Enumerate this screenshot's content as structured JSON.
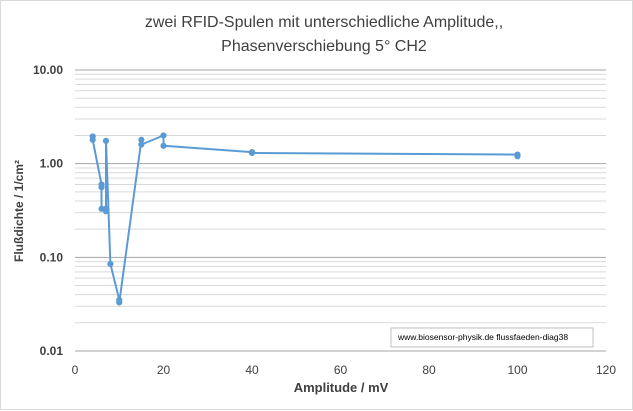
{
  "chart_data": {
    "type": "scatter",
    "title_lines": [
      "zwei RFID-Spulen mit unterschiedliche Amplitude,,",
      "Phasenverschiebung 5° CH2"
    ],
    "xlabel": "Amplitude / mV",
    "ylabel": "Flußdichte / 1/cm²",
    "xlim": [
      0,
      120
    ],
    "ylim": [
      0.01,
      10
    ],
    "yscale": "log",
    "xticks": [
      0,
      20,
      40,
      60,
      80,
      100,
      120
    ],
    "xtick_labels": [
      "0",
      "20",
      "40",
      "60",
      "80",
      "100",
      "120"
    ],
    "yticks": [
      0.01,
      0.1,
      1,
      10
    ],
    "ytick_labels": [
      "0.01",
      "0.10",
      "1.00",
      "10.00"
    ],
    "grid": {
      "horizontal": true,
      "vertical": false,
      "minor_horizontal": true
    },
    "series": [
      {
        "color": "#5b9bd5",
        "lines": true,
        "markers": true,
        "x": [
          4,
          4,
          6,
          6,
          6,
          7,
          7,
          7,
          8,
          10,
          10,
          15,
          15,
          20,
          20,
          40,
          40,
          100,
          100
        ],
        "y": [
          1.95,
          1.8,
          0.6,
          0.56,
          0.33,
          0.33,
          0.31,
          1.75,
          0.085,
          0.035,
          0.033,
          1.8,
          1.6,
          2.0,
          1.55,
          1.33,
          1.3,
          1.25,
          1.2
        ]
      }
    ],
    "annotation": "www.biosensor-physik.de  flussfaeden-diag38"
  }
}
